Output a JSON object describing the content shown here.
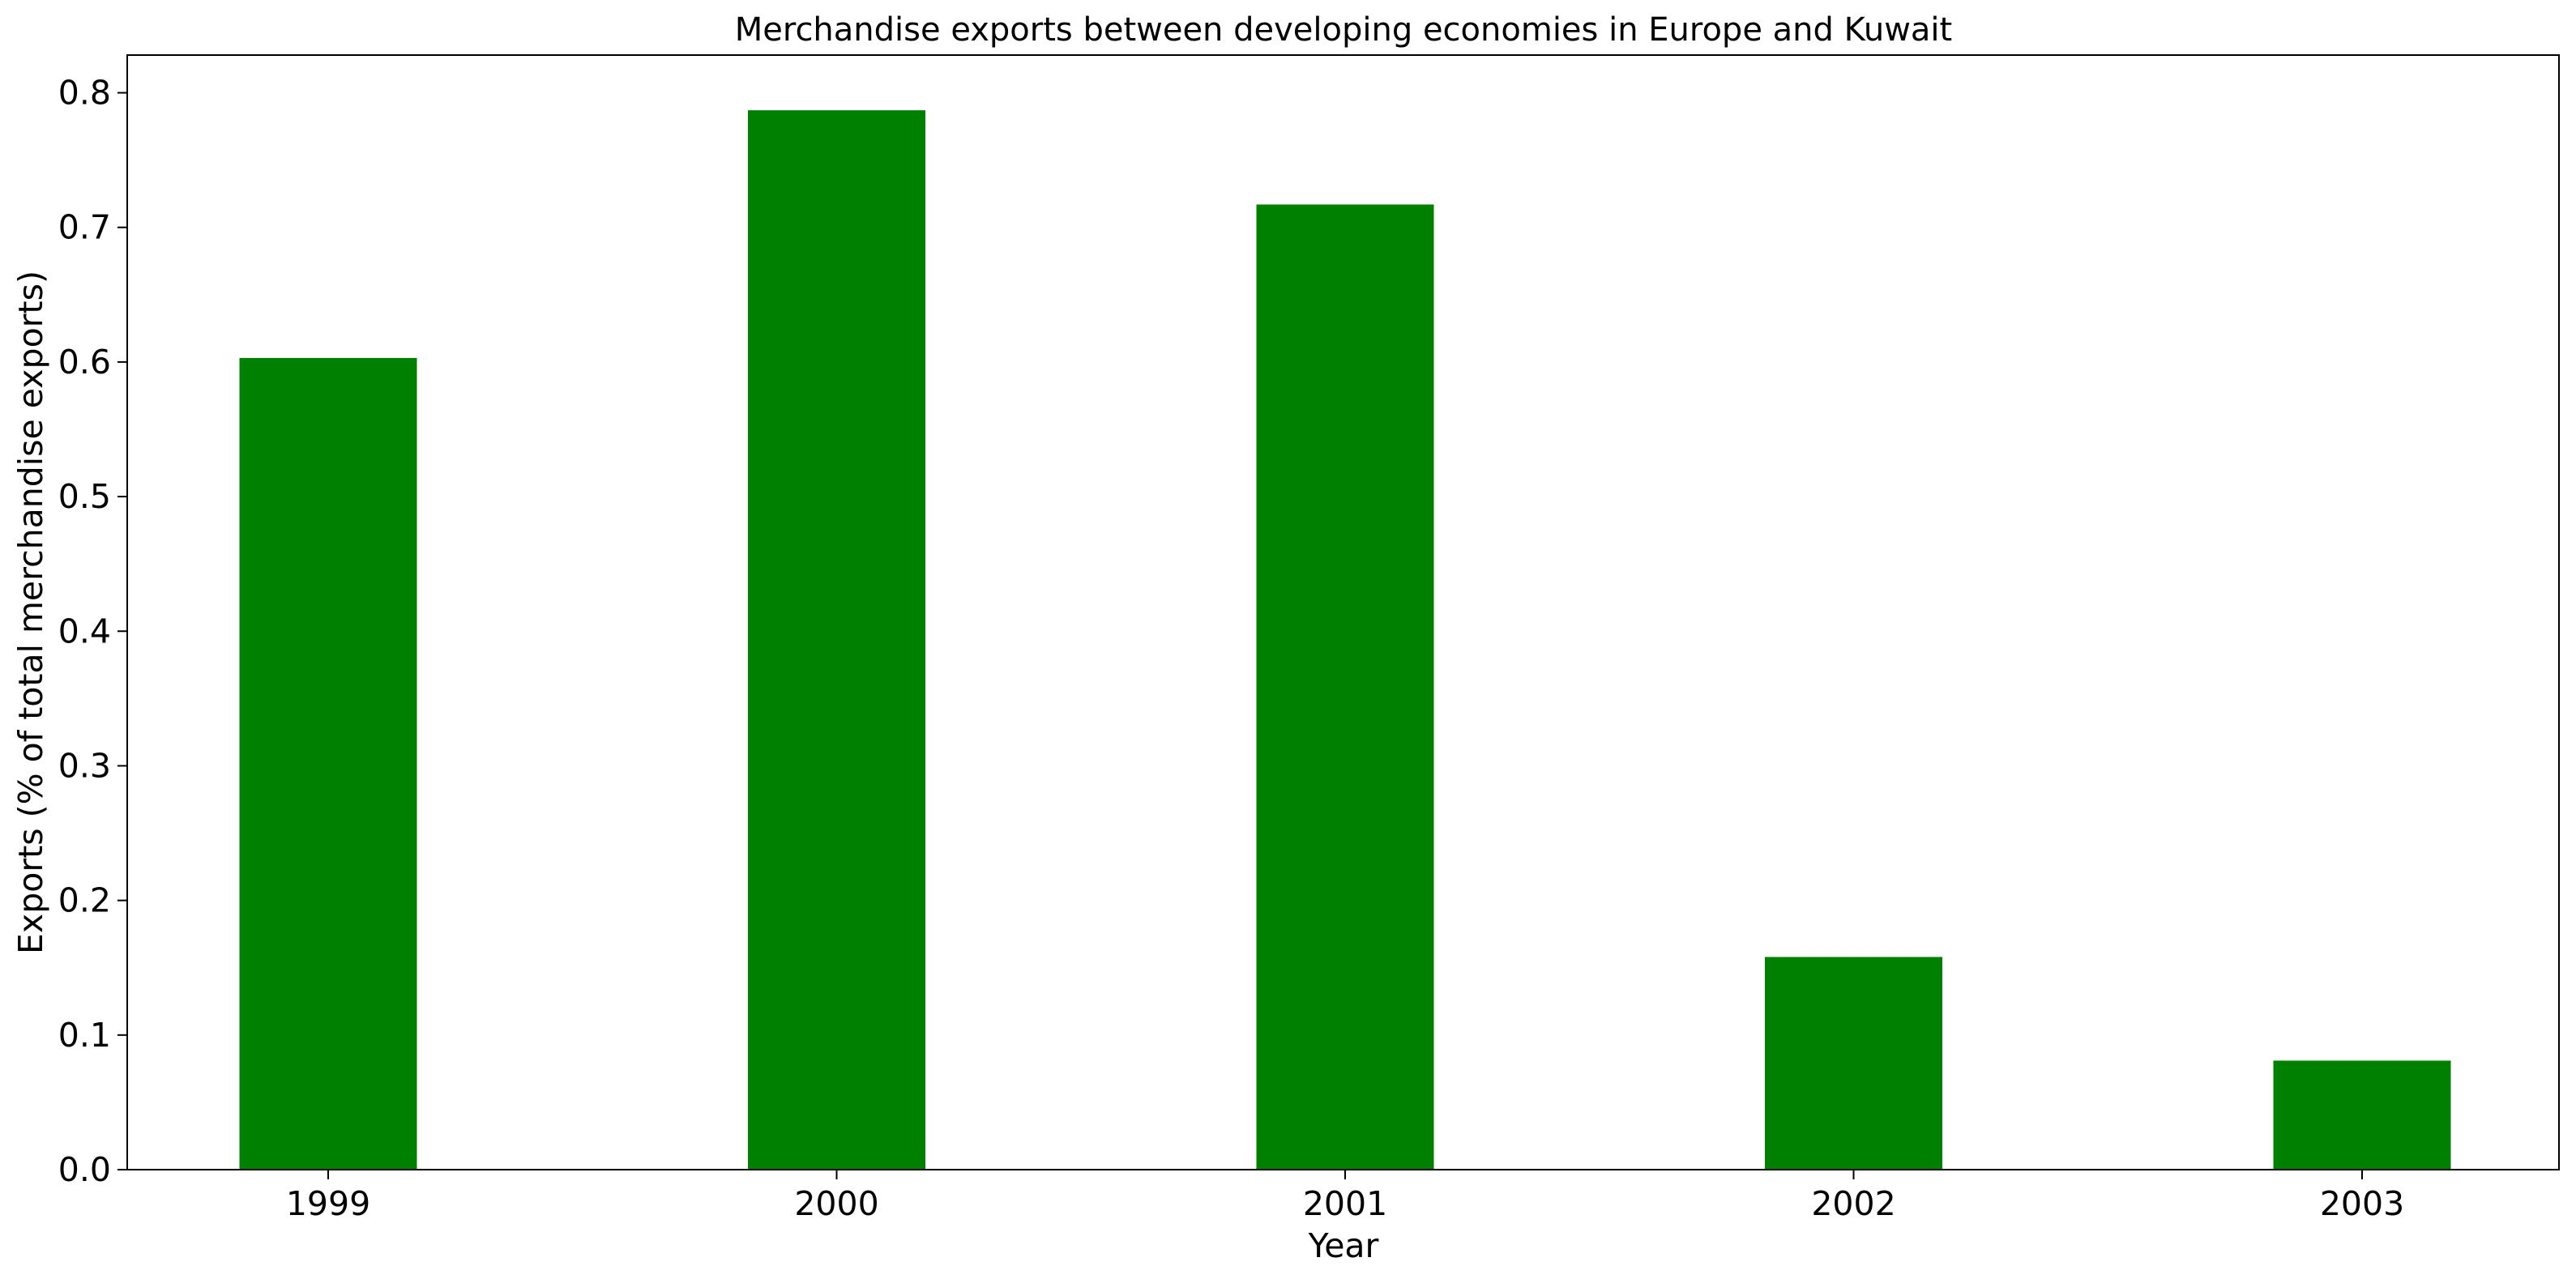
{
  "chart_data": {
    "type": "bar",
    "title": "Merchandise exports between developing economies in Europe and Kuwait",
    "xlabel": "Year",
    "ylabel": "Exports (% of total merchandise exports)",
    "categories": [
      "1999",
      "2000",
      "2001",
      "2002",
      "2003"
    ],
    "values": [
      0.603,
      0.787,
      0.717,
      0.158,
      0.081
    ],
    "ylim": [
      0,
      0.828
    ],
    "yticks": [
      "0.0",
      "0.1",
      "0.2",
      "0.3",
      "0.4",
      "0.5",
      "0.6",
      "0.7",
      "0.8"
    ],
    "bar_color": "#008000",
    "grid": false,
    "legend": "none"
  }
}
